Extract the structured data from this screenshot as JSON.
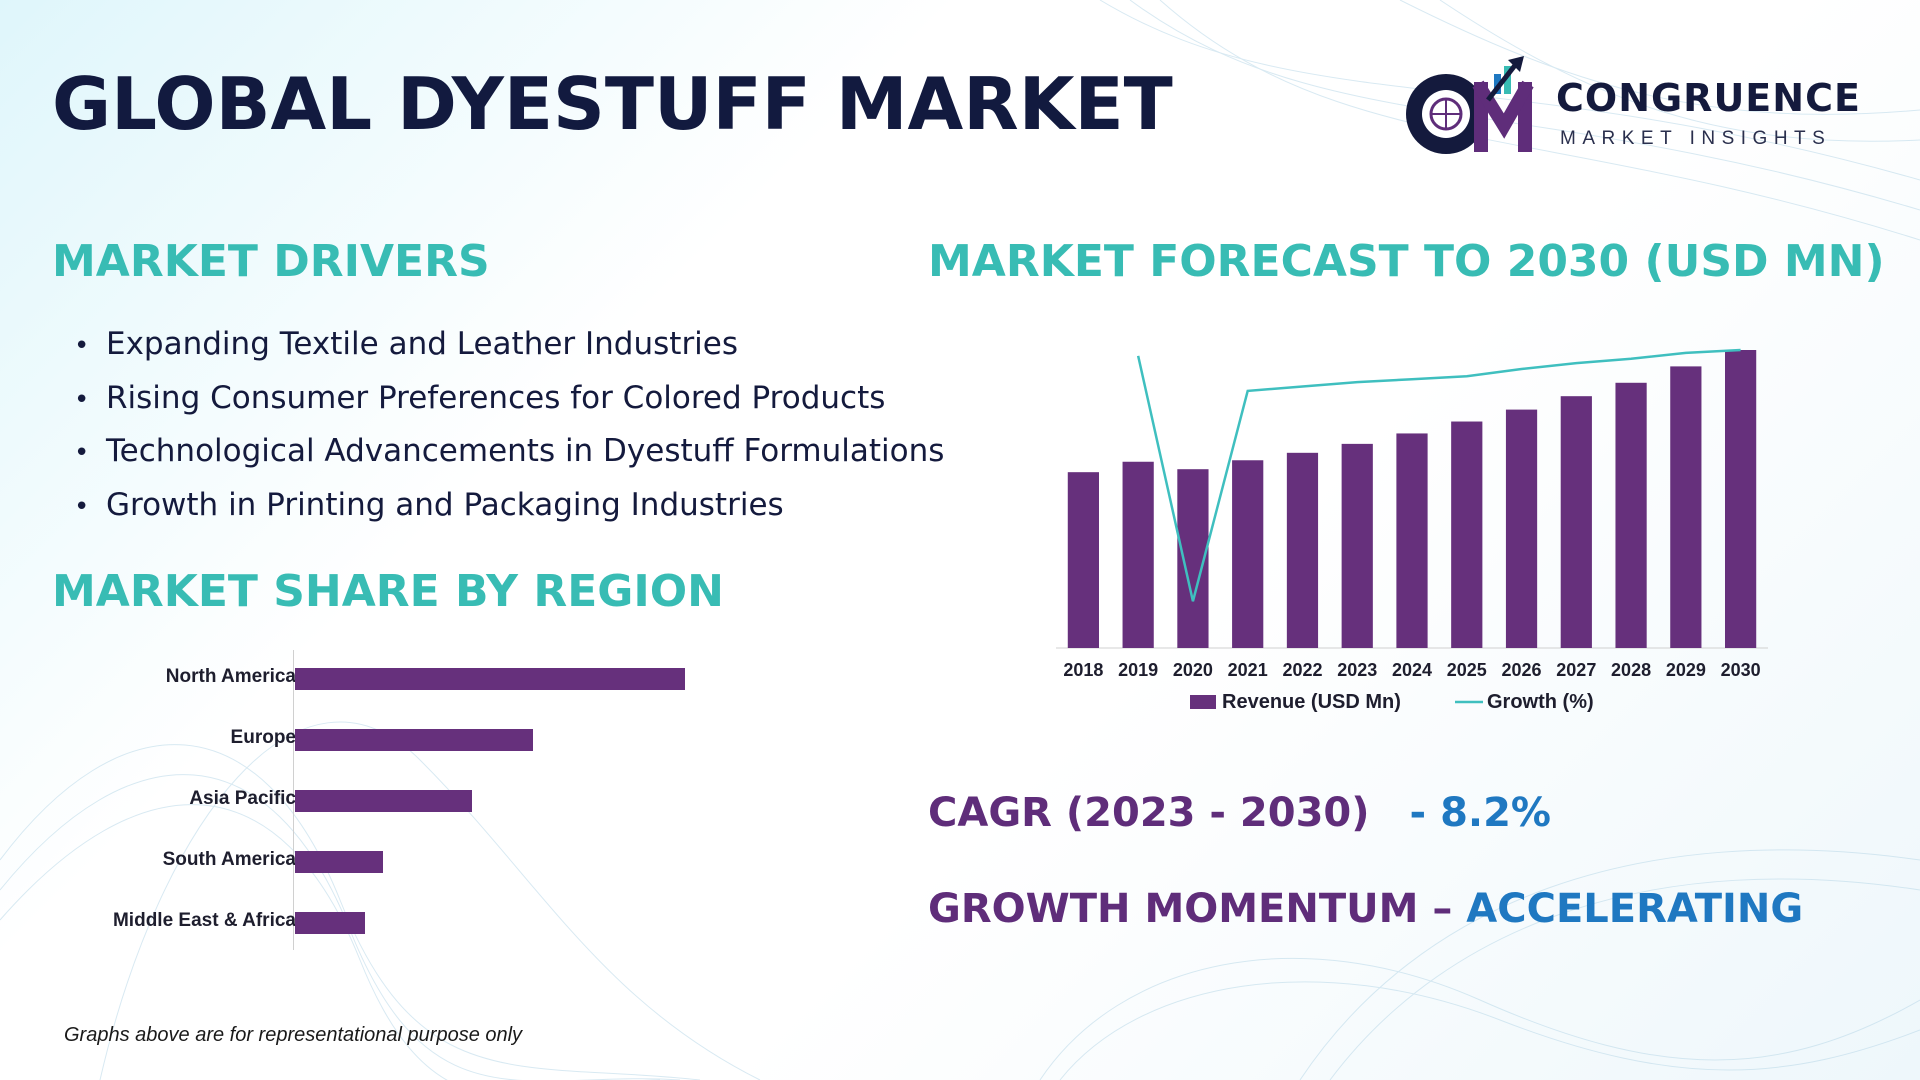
{
  "title": "GLOBAL DYESTUFF MARKET",
  "brand": {
    "name": "CONGRUENCE",
    "sub": "MARKET INSIGHTS",
    "colors": {
      "navy": "#141a3d",
      "purple": "#5f2d7a",
      "teal": "#38bcb4",
      "blue": "#1f78c1"
    }
  },
  "drivers": {
    "heading": "MARKET DRIVERS",
    "items": [
      "Expanding Textile and Leather Industries",
      "Rising Consumer Preferences for Colored Products",
      "Technological Advancements in Dyestuff Formulations",
      "Growth in Printing and Packaging Industries"
    ]
  },
  "region": {
    "heading": "MARKET SHARE BY REGION"
  },
  "forecast": {
    "heading": "MARKET FORECAST TO 2030 (USD MN)"
  },
  "cagr": {
    "label": "CAGR (2023 - 2030)",
    "value": "- 8.2%"
  },
  "momentum": {
    "label": "GROWTH MOMENTUM – ",
    "value": "ACCELERATING"
  },
  "note": "Graphs above are for representational purpose only",
  "chart_data": [
    {
      "type": "bar",
      "orientation": "horizontal",
      "categories": [
        "North America",
        "Europe",
        "Asia Pacific",
        "South America",
        "Middle East & Africa"
      ],
      "values": [
        100,
        61,
        45.5,
        22.5,
        18
      ],
      "bar_color": "#66307c",
      "title": "",
      "xlabel": "",
      "ylabel": ""
    },
    {
      "type": "bar",
      "categories": [
        "2018",
        "2019",
        "2020",
        "2021",
        "2022",
        "2023",
        "2024",
        "2025",
        "2026",
        "2027",
        "2028",
        "2029",
        "2030"
      ],
      "series": [
        {
          "name": "Revenue (USD Mn)",
          "type": "bar",
          "color": "#66307c",
          "values": [
            59,
            62.5,
            60,
            63,
            65.5,
            68.5,
            72,
            76,
            80,
            84.5,
            89,
            94.5,
            100
          ]
        },
        {
          "name": "Growth (%)",
          "type": "line",
          "color": "#3fbfbf",
          "values": [
            null,
            100,
            16,
            88,
            89.5,
            91,
            92,
            93,
            95.5,
            97.5,
            99,
            101,
            102
          ]
        }
      ],
      "legend": "bottom",
      "grid": false,
      "xlabel": "",
      "ylabel": "",
      "title": ""
    }
  ]
}
